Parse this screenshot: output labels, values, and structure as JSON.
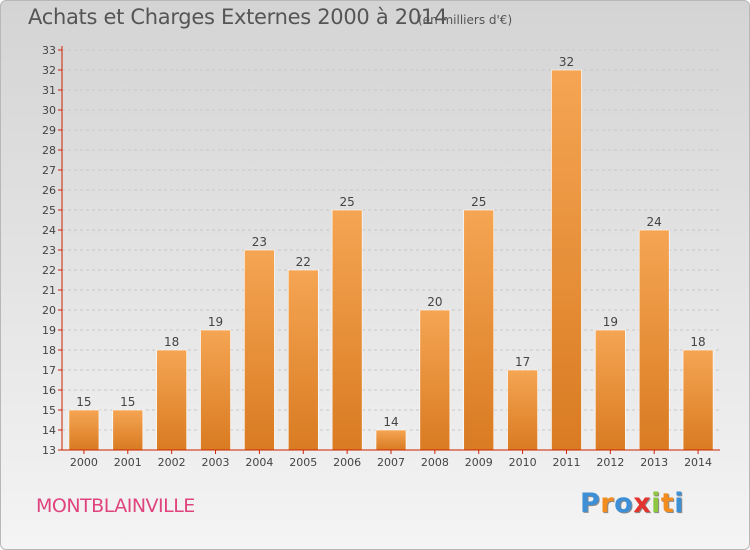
{
  "title": "Achats et Charges Externes 2000 à 2014",
  "subtitle": "(en milliers d'€)",
  "place": "MONTBLAINVILLE",
  "logo": {
    "letters": [
      "P",
      "r",
      "o",
      "x",
      "i",
      "t",
      "i"
    ],
    "colors": [
      "#3d8fd6",
      "#f28c1f",
      "#3d8fd6",
      "#e2342d",
      "#8dc63f",
      "#f28c1f",
      "#3d8fd6"
    ]
  },
  "colors": {
    "bar_top": "#f5a553",
    "bar_bottom": "#d97b22",
    "axis": "#cc2200",
    "grid": "#c8c8c8",
    "text": "#444444"
  },
  "chart_data": {
    "type": "bar",
    "title": "Achats et Charges Externes 2000 à 2014",
    "subtitle": "(en milliers d'€)",
    "categories": [
      "2000",
      "2001",
      "2002",
      "2003",
      "2004",
      "2005",
      "2006",
      "2007",
      "2008",
      "2009",
      "2010",
      "2011",
      "2012",
      "2013",
      "2014"
    ],
    "values": [
      15,
      15,
      18,
      19,
      23,
      22,
      25,
      14,
      20,
      25,
      17,
      32,
      19,
      24,
      18
    ],
    "ylim": [
      13,
      33
    ],
    "yticks": [
      13,
      14,
      15,
      16,
      17,
      18,
      19,
      20,
      21,
      22,
      23,
      24,
      25,
      26,
      27,
      28,
      29,
      30,
      31,
      32,
      33
    ],
    "grid": true,
    "data_labels": true
  }
}
